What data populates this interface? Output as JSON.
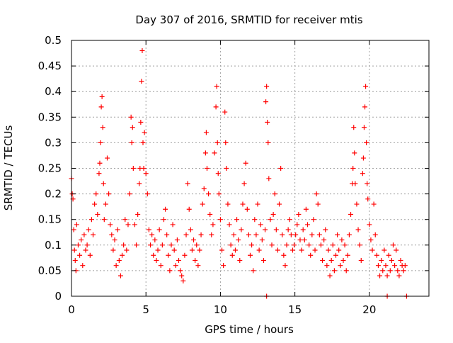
{
  "chart_data": {
    "type": "scatter",
    "title": "Day 307 of 2016, SRMTID for receiver mtis",
    "xlabel": "GPS time / hours",
    "ylabel": "SRMTID / TECUs",
    "xlim": [
      0,
      24
    ],
    "ylim": [
      0,
      0.5
    ],
    "xticks": [
      0,
      5,
      10,
      15,
      20
    ],
    "xtick_labels": [
      "0",
      "5",
      "10",
      "15",
      "20"
    ],
    "yticks": [
      0,
      0.05,
      0.1,
      0.15,
      0.2,
      0.25,
      0.3,
      0.35,
      0.4,
      0.45,
      0.5
    ],
    "ytick_labels": [
      "0",
      "0.05",
      "0.1",
      "0.15",
      "0.2",
      "0.25",
      "0.3",
      "0.35",
      "0.4",
      "0.45",
      "0.5"
    ],
    "grid": true,
    "marker": "+",
    "marker_color": "#ff0000",
    "series": [
      {
        "name": "SRMTID",
        "points": [
          [
            0.0,
            0.23
          ],
          [
            0.05,
            0.2
          ],
          [
            0.1,
            0.19
          ],
          [
            0.15,
            0.13
          ],
          [
            0.2,
            0.09
          ],
          [
            0.25,
            0.07
          ],
          [
            0.3,
            0.05
          ],
          [
            0.35,
            0.14
          ],
          [
            0.45,
            0.1
          ],
          [
            0.55,
            0.08
          ],
          [
            0.65,
            0.11
          ],
          [
            0.75,
            0.06
          ],
          [
            0.85,
            0.12
          ],
          [
            0.95,
            0.09
          ],
          [
            1.05,
            0.1
          ],
          [
            1.15,
            0.13
          ],
          [
            1.25,
            0.08
          ],
          [
            1.35,
            0.15
          ],
          [
            1.45,
            0.12
          ],
          [
            1.55,
            0.18
          ],
          [
            1.65,
            0.2
          ],
          [
            1.75,
            0.16
          ],
          [
            1.85,
            0.24
          ],
          [
            1.9,
            0.26
          ],
          [
            1.95,
            0.3
          ],
          [
            2.0,
            0.37
          ],
          [
            2.05,
            0.39
          ],
          [
            2.1,
            0.33
          ],
          [
            2.15,
            0.22
          ],
          [
            2.2,
            0.15
          ],
          [
            2.3,
            0.18
          ],
          [
            2.4,
            0.27
          ],
          [
            2.5,
            0.2
          ],
          [
            2.6,
            0.14
          ],
          [
            2.7,
            0.12
          ],
          [
            2.8,
            0.09
          ],
          [
            2.9,
            0.11
          ],
          [
            3.0,
            0.06
          ],
          [
            3.1,
            0.13
          ],
          [
            3.2,
            0.07
          ],
          [
            3.3,
            0.04
          ],
          [
            3.4,
            0.08
          ],
          [
            3.5,
            0.1
          ],
          [
            3.6,
            0.15
          ],
          [
            3.7,
            0.09
          ],
          [
            3.8,
            0.14
          ],
          [
            3.9,
            0.2
          ],
          [
            4.0,
            0.35
          ],
          [
            4.05,
            0.3
          ],
          [
            4.1,
            0.33
          ],
          [
            4.15,
            0.25
          ],
          [
            4.25,
            0.14
          ],
          [
            4.35,
            0.1
          ],
          [
            4.45,
            0.16
          ],
          [
            4.55,
            0.22
          ],
          [
            4.6,
            0.25
          ],
          [
            4.65,
            0.34
          ],
          [
            4.7,
            0.42
          ],
          [
            4.75,
            0.48
          ],
          [
            4.8,
            0.3
          ],
          [
            4.85,
            0.25
          ],
          [
            4.9,
            0.32
          ],
          [
            5.0,
            0.24
          ],
          [
            5.1,
            0.2
          ],
          [
            5.2,
            0.13
          ],
          [
            5.3,
            0.1
          ],
          [
            5.4,
            0.12
          ],
          [
            5.5,
            0.08
          ],
          [
            5.6,
            0.11
          ],
          [
            5.7,
            0.07
          ],
          [
            5.8,
            0.09
          ],
          [
            5.9,
            0.13
          ],
          [
            6.0,
            0.06
          ],
          [
            6.1,
            0.1
          ],
          [
            6.2,
            0.15
          ],
          [
            6.3,
            0.17
          ],
          [
            6.4,
            0.12
          ],
          [
            6.5,
            0.08
          ],
          [
            6.6,
            0.05
          ],
          [
            6.7,
            0.1
          ],
          [
            6.8,
            0.14
          ],
          [
            6.9,
            0.09
          ],
          [
            7.0,
            0.06
          ],
          [
            7.1,
            0.11
          ],
          [
            7.2,
            0.07
          ],
          [
            7.3,
            0.05
          ],
          [
            7.4,
            0.04
          ],
          [
            7.5,
            0.03
          ],
          [
            7.6,
            0.08
          ],
          [
            7.7,
            0.12
          ],
          [
            7.8,
            0.22
          ],
          [
            7.9,
            0.17
          ],
          [
            8.0,
            0.13
          ],
          [
            8.1,
            0.09
          ],
          [
            8.2,
            0.11
          ],
          [
            8.3,
            0.07
          ],
          [
            8.4,
            0.1
          ],
          [
            8.5,
            0.06
          ],
          [
            8.6,
            0.09
          ],
          [
            8.7,
            0.12
          ],
          [
            8.8,
            0.18
          ],
          [
            8.9,
            0.21
          ],
          [
            9.0,
            0.28
          ],
          [
            9.05,
            0.32
          ],
          [
            9.1,
            0.25
          ],
          [
            9.2,
            0.2
          ],
          [
            9.3,
            0.16
          ],
          [
            9.4,
            0.12
          ],
          [
            9.5,
            0.14
          ],
          [
            9.6,
            0.28
          ],
          [
            9.7,
            0.37
          ],
          [
            9.75,
            0.41
          ],
          [
            9.8,
            0.3
          ],
          [
            9.85,
            0.24
          ],
          [
            9.9,
            0.2
          ],
          [
            10.0,
            0.15
          ],
          [
            10.1,
            0.09
          ],
          [
            10.2,
            0.06
          ],
          [
            10.3,
            0.36
          ],
          [
            10.35,
            0.3
          ],
          [
            10.4,
            0.25
          ],
          [
            10.5,
            0.18
          ],
          [
            10.6,
            0.14
          ],
          [
            10.7,
            0.1
          ],
          [
            10.8,
            0.08
          ],
          [
            10.9,
            0.12
          ],
          [
            11.0,
            0.09
          ],
          [
            11.1,
            0.15
          ],
          [
            11.2,
            0.11
          ],
          [
            11.3,
            0.07
          ],
          [
            11.4,
            0.13
          ],
          [
            11.5,
            0.18
          ],
          [
            11.6,
            0.22
          ],
          [
            11.7,
            0.26
          ],
          [
            11.8,
            0.17
          ],
          [
            11.9,
            0.12
          ],
          [
            12.0,
            0.08
          ],
          [
            12.1,
            0.1
          ],
          [
            12.2,
            0.05
          ],
          [
            12.3,
            0.15
          ],
          [
            12.4,
            0.12
          ],
          [
            12.5,
            0.18
          ],
          [
            12.6,
            0.09
          ],
          [
            12.7,
            0.14
          ],
          [
            12.8,
            0.11
          ],
          [
            12.9,
            0.07
          ],
          [
            13.0,
            0.13
          ],
          [
            13.05,
            0.38
          ],
          [
            13.1,
            0.41
          ],
          [
            13.15,
            0.34
          ],
          [
            13.2,
            0.3
          ],
          [
            13.25,
            0.23
          ],
          [
            13.35,
            0.15
          ],
          [
            13.45,
            0.1
          ],
          [
            13.55,
            0.16
          ],
          [
            13.65,
            0.2
          ],
          [
            13.75,
            0.13
          ],
          [
            13.85,
            0.09
          ],
          [
            13.95,
            0.18
          ],
          [
            14.05,
            0.25
          ],
          [
            14.15,
            0.12
          ],
          [
            14.25,
            0.08
          ],
          [
            14.35,
            0.06
          ],
          [
            14.45,
            0.1
          ],
          [
            14.55,
            0.13
          ],
          [
            14.65,
            0.15
          ],
          [
            14.75,
            0.12
          ],
          [
            14.85,
            0.09
          ],
          [
            14.95,
            0.1
          ],
          [
            15.05,
            0.12
          ],
          [
            15.15,
            0.14
          ],
          [
            15.25,
            0.16
          ],
          [
            15.35,
            0.11
          ],
          [
            15.45,
            0.09
          ],
          [
            15.55,
            0.13
          ],
          [
            15.65,
            0.11
          ],
          [
            15.75,
            0.17
          ],
          [
            15.85,
            0.14
          ],
          [
            15.95,
            0.1
          ],
          [
            16.05,
            0.08
          ],
          [
            16.15,
            0.12
          ],
          [
            16.25,
            0.15
          ],
          [
            16.35,
            0.09
          ],
          [
            16.45,
            0.2
          ],
          [
            16.55,
            0.18
          ],
          [
            16.65,
            0.12
          ],
          [
            16.75,
            0.1
          ],
          [
            16.85,
            0.07
          ],
          [
            16.95,
            0.11
          ],
          [
            17.05,
            0.13
          ],
          [
            17.15,
            0.06
          ],
          [
            17.25,
            0.09
          ],
          [
            17.35,
            0.04
          ],
          [
            17.45,
            0.07
          ],
          [
            17.55,
            0.1
          ],
          [
            17.65,
            0.05
          ],
          [
            17.75,
            0.08
          ],
          [
            17.85,
            0.12
          ],
          [
            17.95,
            0.09
          ],
          [
            18.05,
            0.06
          ],
          [
            18.15,
            0.11
          ],
          [
            18.25,
            0.07
          ],
          [
            18.35,
            0.1
          ],
          [
            18.45,
            0.05
          ],
          [
            18.55,
            0.08
          ],
          [
            18.65,
            0.12
          ],
          [
            18.75,
            0.16
          ],
          [
            18.85,
            0.22
          ],
          [
            18.9,
            0.25
          ],
          [
            18.95,
            0.33
          ],
          [
            19.0,
            0.28
          ],
          [
            19.05,
            0.22
          ],
          [
            19.15,
            0.18
          ],
          [
            19.25,
            0.13
          ],
          [
            19.35,
            0.1
          ],
          [
            19.45,
            0.07
          ],
          [
            19.55,
            0.24
          ],
          [
            19.6,
            0.27
          ],
          [
            19.65,
            0.33
          ],
          [
            19.7,
            0.37
          ],
          [
            19.75,
            0.41
          ],
          [
            19.8,
            0.3
          ],
          [
            19.85,
            0.22
          ],
          [
            19.9,
            0.19
          ],
          [
            20.0,
            0.14
          ],
          [
            20.1,
            0.11
          ],
          [
            20.2,
            0.09
          ],
          [
            20.3,
            0.18
          ],
          [
            20.4,
            0.12
          ],
          [
            20.5,
            0.08
          ],
          [
            20.6,
            0.06
          ],
          [
            20.7,
            0.04
          ],
          [
            20.8,
            0.07
          ],
          [
            20.9,
            0.05
          ],
          [
            21.0,
            0.09
          ],
          [
            21.1,
            0.06
          ],
          [
            21.2,
            0.04
          ],
          [
            21.3,
            0.08
          ],
          [
            21.4,
            0.05
          ],
          [
            21.5,
            0.07
          ],
          [
            21.6,
            0.1
          ],
          [
            21.7,
            0.06
          ],
          [
            21.8,
            0.09
          ],
          [
            21.9,
            0.05
          ],
          [
            22.0,
            0.04
          ],
          [
            22.1,
            0.07
          ],
          [
            22.2,
            0.06
          ],
          [
            22.3,
            0.05
          ],
          [
            22.4,
            0.06
          ],
          [
            13.1,
            0.0
          ],
          [
            21.2,
            0.0
          ],
          [
            22.5,
            0.0
          ]
        ]
      }
    ]
  }
}
